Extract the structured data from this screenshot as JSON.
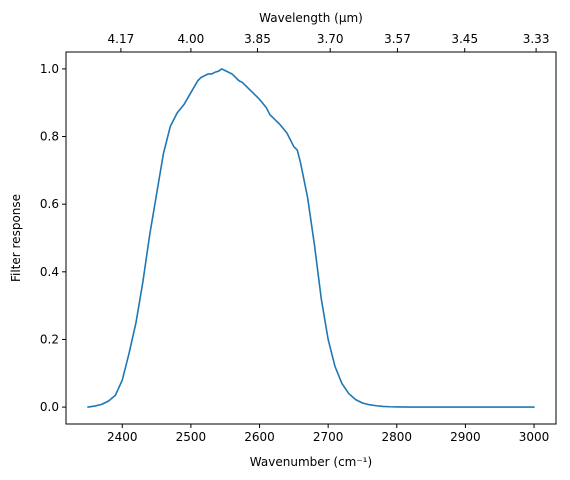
{
  "chart_data": {
    "type": "line",
    "xlabel": "Wavenumber (cm⁻¹)",
    "ylabel": "Filter response",
    "top_xlabel": "Wavelength (μm)",
    "xlim": [
      2318,
      3032
    ],
    "ylim": [
      -0.05,
      1.05
    ],
    "grid": false,
    "x_ticks": [
      2400,
      2500,
      2600,
      2700,
      2800,
      2900,
      3000
    ],
    "x_tick_labels": [
      "2400",
      "2500",
      "2600",
      "2700",
      "2800",
      "2900",
      "3000"
    ],
    "y_ticks": [
      0.0,
      0.2,
      0.4,
      0.6,
      0.8,
      1.0
    ],
    "y_tick_labels": [
      "0.0",
      "0.2",
      "0.4",
      "0.6",
      "0.8",
      "1.0"
    ],
    "top_ticks_wavenumber": [
      2398,
      2500,
      2597,
      2703,
      2801,
      2899,
      3003
    ],
    "top_tick_labels": [
      "4.17",
      "4.00",
      "3.85",
      "3.70",
      "3.57",
      "3.45",
      "3.33"
    ],
    "series": [
      {
        "color": "#1f77b4",
        "x": [
          2350,
          2360,
          2370,
          2380,
          2390,
          2400,
          2410,
          2420,
          2430,
          2440,
          2450,
          2460,
          2470,
          2480,
          2490,
          2500,
          2510,
          2515,
          2520,
          2525,
          2530,
          2535,
          2540,
          2545,
          2550,
          2555,
          2560,
          2565,
          2570,
          2575,
          2580,
          2590,
          2600,
          2610,
          2615,
          2620,
          2630,
          2640,
          2650,
          2655,
          2660,
          2670,
          2680,
          2690,
          2700,
          2710,
          2720,
          2730,
          2740,
          2750,
          2760,
          2770,
          2780,
          2790,
          2800,
          2820,
          2850,
          2900,
          2950,
          3000
        ],
        "y": [
          0.0,
          0.003,
          0.008,
          0.018,
          0.035,
          0.08,
          0.16,
          0.25,
          0.37,
          0.51,
          0.63,
          0.75,
          0.83,
          0.87,
          0.895,
          0.93,
          0.965,
          0.975,
          0.98,
          0.985,
          0.985,
          0.99,
          0.993,
          1.0,
          0.995,
          0.99,
          0.985,
          0.975,
          0.965,
          0.96,
          0.95,
          0.93,
          0.91,
          0.885,
          0.865,
          0.855,
          0.835,
          0.81,
          0.77,
          0.76,
          0.72,
          0.62,
          0.48,
          0.32,
          0.2,
          0.12,
          0.07,
          0.04,
          0.022,
          0.012,
          0.007,
          0.004,
          0.002,
          0.001,
          0.0005,
          0.0002,
          0.0001,
          0.0,
          0.0,
          0.0
        ]
      }
    ]
  }
}
